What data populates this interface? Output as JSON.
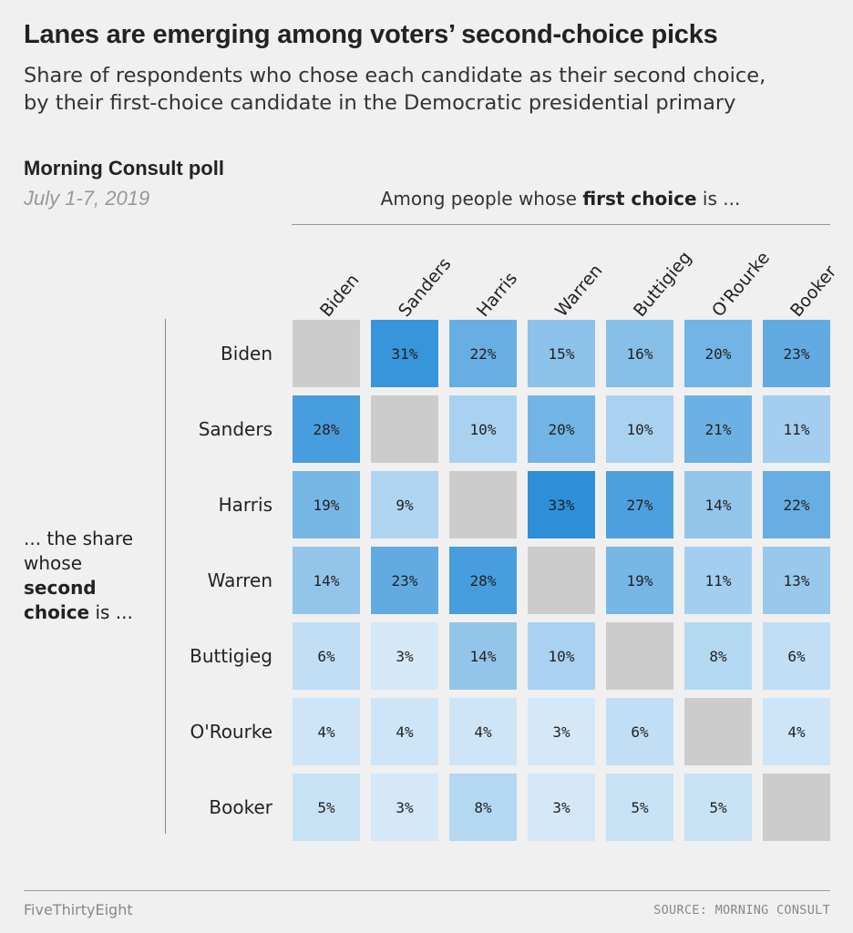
{
  "title": "Lanes are emerging among voters’ second-choice picks",
  "subtitle_line1": "Share of respondents who chose each candidate as their second choice,",
  "subtitle_line2": "by their first-choice candidate in the Democratic presidential primary",
  "poll_label": "Morning Consult poll",
  "poll_date": "July 1-7, 2019",
  "column_header": {
    "prefix": "Among people whose ",
    "emphasis": "first choice",
    "suffix": " is ..."
  },
  "row_header": {
    "line1": "... the share",
    "line2": "whose",
    "emphasis1": "second",
    "emphasis2": "choice",
    "suffix": " is ..."
  },
  "footer": {
    "brand": "FiveThirtyEight",
    "source": "SOURCE: MORNING CONSULT"
  },
  "colors": {
    "background": "#f0f0f0",
    "empty_cell": "#cccccc",
    "scale_low": "#eaf4fc",
    "scale_high": "#2d8fd8"
  },
  "chart_data": {
    "type": "heatmap",
    "columns": [
      "Biden",
      "Sanders",
      "Harris",
      "Warren",
      "Buttigieg",
      "O'Rourke",
      "Booker"
    ],
    "rows": [
      "Biden",
      "Sanders",
      "Harris",
      "Warren",
      "Buttigieg",
      "O'Rourke",
      "Booker"
    ],
    "values": [
      [
        null,
        31,
        22,
        15,
        16,
        20,
        23
      ],
      [
        28,
        null,
        10,
        20,
        10,
        21,
        11
      ],
      [
        19,
        9,
        null,
        33,
        27,
        14,
        22
      ],
      [
        14,
        23,
        28,
        null,
        19,
        11,
        13
      ],
      [
        6,
        3,
        14,
        10,
        null,
        8,
        6
      ],
      [
        4,
        4,
        4,
        3,
        6,
        null,
        4
      ],
      [
        5,
        3,
        8,
        3,
        5,
        5,
        null
      ]
    ],
    "unit": "%",
    "value_range": [
      0,
      33
    ]
  }
}
